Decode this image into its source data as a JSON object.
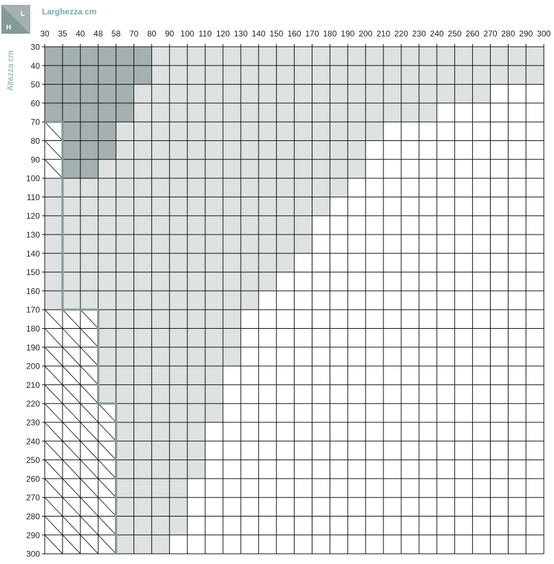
{
  "chart_data": {
    "type": "heatmap",
    "title": "",
    "xlabel": "Larghezza cm",
    "ylabel": "Altezza cm",
    "corner_labels": {
      "width": "L",
      "height": "H"
    },
    "x_ticks": [
      "30",
      "35",
      "40",
      "48",
      "58",
      "70",
      "80",
      "90",
      "100",
      "110",
      "120",
      "130",
      "140",
      "150",
      "160",
      "170",
      "180",
      "190",
      "200",
      "210",
      "220",
      "230",
      "240",
      "250",
      "260",
      "270",
      "280",
      "290",
      "300"
    ],
    "y_ticks": [
      "30",
      "40",
      "50",
      "60",
      "70",
      "80",
      "90",
      "100",
      "110",
      "120",
      "130",
      "140",
      "150",
      "160",
      "170",
      "180",
      "190",
      "200",
      "210",
      "220",
      "230",
      "240",
      "250",
      "260",
      "270",
      "280",
      "290",
      "300"
    ],
    "zone_light_max_width_by_height": [
      {
        "height": 40,
        "max_width": 300
      },
      {
        "height": 50,
        "max_width": 300
      },
      {
        "height": 60,
        "max_width": 270
      },
      {
        "height": 70,
        "max_width": 240
      },
      {
        "height": 80,
        "max_width": 210
      },
      {
        "height": 90,
        "max_width": 200
      },
      {
        "height": 100,
        "max_width": 200
      },
      {
        "height": 110,
        "max_width": 190
      },
      {
        "height": 120,
        "max_width": 180
      },
      {
        "height": 130,
        "max_width": 170
      },
      {
        "height": 140,
        "max_width": 170
      },
      {
        "height": 150,
        "max_width": 160
      },
      {
        "height": 160,
        "max_width": 150
      },
      {
        "height": 170,
        "max_width": 140
      },
      {
        "height": 180,
        "max_width": 130
      },
      {
        "height": 190,
        "max_width": 130
      },
      {
        "height": 200,
        "max_width": 130
      },
      {
        "height": 210,
        "max_width": 120
      },
      {
        "height": 220,
        "max_width": 120
      },
      {
        "height": 230,
        "max_width": 120
      },
      {
        "height": 240,
        "max_width": 110
      },
      {
        "height": 250,
        "max_width": 110
      },
      {
        "height": 260,
        "max_width": 110
      },
      {
        "height": 270,
        "max_width": 100
      },
      {
        "height": 280,
        "max_width": 100
      },
      {
        "height": 290,
        "max_width": 100
      },
      {
        "height": 300,
        "max_width": 90
      }
    ],
    "zone_dark_max_width_by_height": [
      {
        "height": 40,
        "max_width": 80
      },
      {
        "height": 50,
        "max_width": 80
      },
      {
        "height": 60,
        "max_width": 70
      },
      {
        "height": 70,
        "max_width": 70
      },
      {
        "height": 80,
        "max_width": 58
      },
      {
        "height": 90,
        "max_width": 58
      },
      {
        "height": 100,
        "max_width": 48
      }
    ],
    "hatched_min_width_by_height": [
      {
        "height": 80,
        "min_width": 35
      },
      {
        "height": 90,
        "min_width": 35
      },
      {
        "height": 100,
        "min_width": 35
      },
      {
        "height": 180,
        "min_width": 48
      },
      {
        "height": 190,
        "min_width": 48
      },
      {
        "height": 200,
        "min_width": 48
      },
      {
        "height": 210,
        "min_width": 48
      },
      {
        "height": 220,
        "min_width": 48
      },
      {
        "height": 230,
        "min_width": 58
      },
      {
        "height": 240,
        "min_width": 58
      },
      {
        "height": 250,
        "min_width": 58
      },
      {
        "height": 260,
        "min_width": 58
      },
      {
        "height": 270,
        "min_width": 58
      },
      {
        "height": 280,
        "min_width": 58
      },
      {
        "height": 290,
        "min_width": 58
      },
      {
        "height": 300,
        "min_width": 58
      }
    ],
    "colors": {
      "zone_light": "#dee2e2",
      "zone_dark": "#a5b0b0",
      "boundary": "#849a9a",
      "accent": "#7aa8aa",
      "grid": "#111111"
    }
  }
}
